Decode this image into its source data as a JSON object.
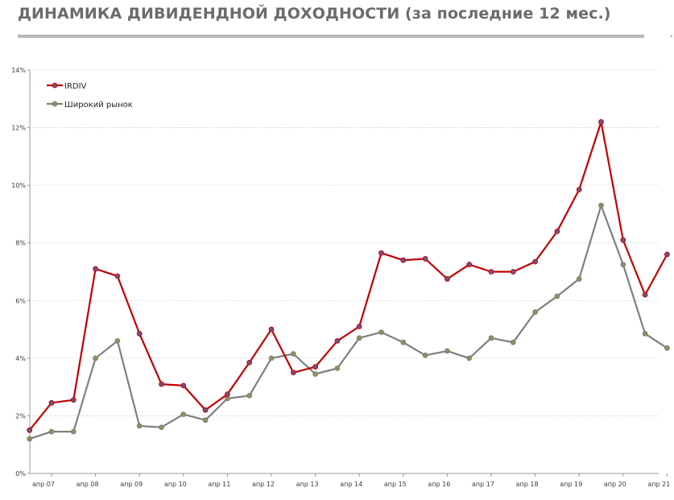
{
  "header": {
    "title": "ДИНАМИКА ДИВИДЕНДНОЙ ДОХОДНОСТИ (за последние 12 мес.)"
  },
  "chart_data": {
    "type": "line",
    "title": "",
    "xlabel": "",
    "ylabel": "",
    "ylim": [
      0,
      14
    ],
    "y_ticks": [
      "0%",
      "2%",
      "4%",
      "6%",
      "8%",
      "10%",
      "12%",
      "14%"
    ],
    "x_tick_labels": [
      "апр 07",
      "апр 08",
      "апр 09",
      "апр 10",
      "апр 11",
      "апр 12",
      "апр 13",
      "апр 14",
      "апр 15",
      "апр 16",
      "апр 17",
      "апр 18",
      "апр 19",
      "апр 20",
      "апр 21"
    ],
    "x": [
      "окт 06",
      "апр 07",
      "окт 07",
      "апр 08",
      "окт 08",
      "апр 09",
      "окт 09",
      "апр 10",
      "окт 10",
      "апр 11",
      "окт 11",
      "апр 12",
      "окт 12",
      "апр 13",
      "окт 13",
      "апр 14",
      "окт 14",
      "апр 15",
      "окт 15",
      "апр 16",
      "окт 16",
      "апр 17",
      "окт 17",
      "апр 18",
      "окт 18",
      "апр 19",
      "окт 19",
      "апр 20",
      "окт 20",
      "апр 21"
    ],
    "grid": true,
    "legend_position": "top-left",
    "series": [
      {
        "name": "IRDIV",
        "color": "#c00000",
        "marker_color": "#7a4e7a",
        "values": [
          1.5,
          2.45,
          2.55,
          7.1,
          6.85,
          4.85,
          3.1,
          3.05,
          2.2,
          2.75,
          3.85,
          5.0,
          3.5,
          3.7,
          4.6,
          5.1,
          7.65,
          7.4,
          7.45,
          6.75,
          7.25,
          7.0,
          7.0,
          7.35,
          8.4,
          9.85,
          12.2,
          8.1,
          6.2,
          7.6
        ]
      },
      {
        "name": "Широкий рынок",
        "color": "#7f7f7f",
        "marker_color": "#8f8f60",
        "values": [
          1.2,
          1.45,
          1.45,
          4.0,
          4.6,
          1.65,
          1.6,
          2.05,
          1.85,
          2.6,
          2.7,
          4.0,
          4.15,
          3.45,
          3.65,
          4.7,
          4.9,
          4.55,
          4.1,
          4.25,
          4.0,
          4.7,
          4.55,
          5.6,
          6.15,
          6.75,
          9.3,
          7.25,
          4.85,
          4.35
        ]
      }
    ]
  }
}
